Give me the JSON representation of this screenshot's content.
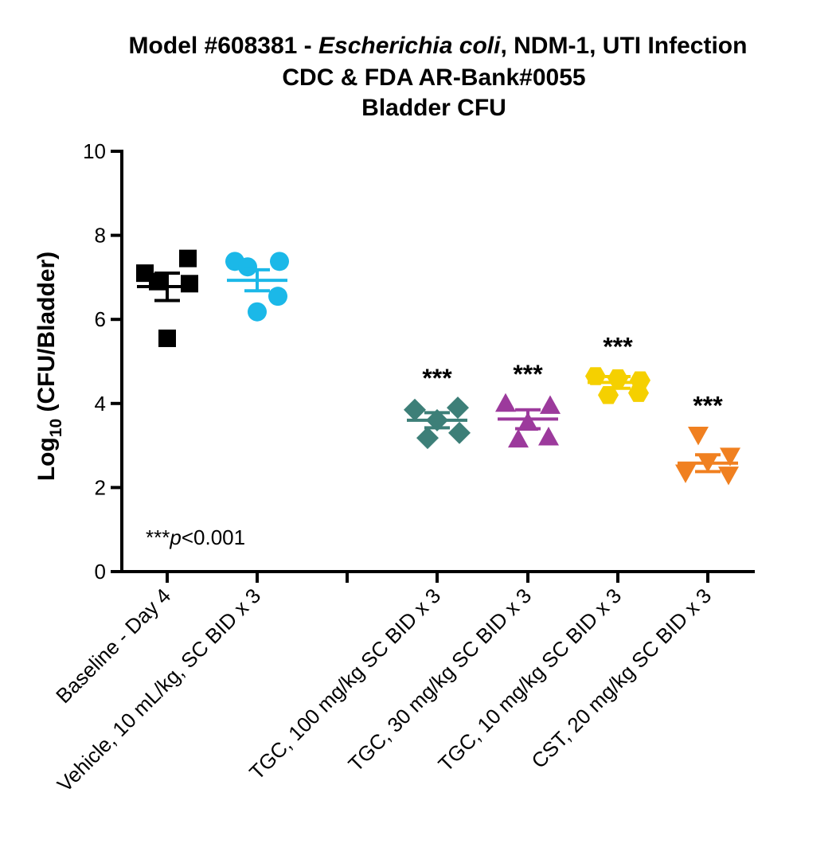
{
  "chart_data": {
    "type": "scatter",
    "title": {
      "line1_prefix": "Model #608381 - ",
      "line1_italic": "Escherichia coli",
      "line1_suffix": ", NDM-1, UTI Infection",
      "line2": "CDC & FDA AR-Bank#0055",
      "line3": "Bladder CFU"
    },
    "ylabel": {
      "prefix": "Log",
      "subscript": "10",
      "suffix": " (CFU/Bladder)"
    },
    "ylim": [
      0,
      10
    ],
    "yticks": [
      "0",
      "2",
      "4",
      "6",
      "8",
      "10"
    ],
    "annotation": {
      "stars": "***",
      "p_italic": "p",
      "rest": "<0.001"
    },
    "groups": [
      {
        "label": "Baseline - Day 4",
        "color": "#000000",
        "marker": "square",
        "mean": 6.78,
        "sem_upper": 7.1,
        "sem_lower": 6.45,
        "points": [
          7.1,
          6.9,
          5.55,
          7.45,
          6.85
        ],
        "significance": ""
      },
      {
        "label": "Vehicle, 10 mL/kg, SC BID x 3",
        "color": "#1bb8e8",
        "marker": "circle",
        "mean": 6.93,
        "sem_upper": 7.18,
        "sem_lower": 6.68,
        "points": [
          7.38,
          7.25,
          6.18,
          6.55,
          7.38
        ],
        "significance": ""
      },
      {
        "label": "TGC, 100 mg/kg SC BID x 3",
        "color": "#3d7f78",
        "marker": "diamond",
        "mean": 3.6,
        "sem_upper": 3.78,
        "sem_lower": 3.42,
        "points": [
          3.85,
          3.18,
          3.6,
          3.9,
          3.3
        ],
        "significance": "***"
      },
      {
        "label": "TGC, 30 mg/kg SC BID x 3",
        "color": "#9c3a9c",
        "marker": "triangle-up",
        "mean": 3.63,
        "sem_upper": 3.85,
        "sem_lower": 3.4,
        "points": [
          4.0,
          3.15,
          3.55,
          3.2,
          3.95
        ],
        "significance": "***"
      },
      {
        "label": "TGC, 10 mg/kg SC BID x 3",
        "color": "#f5d000",
        "marker": "hexagon",
        "mean": 4.5,
        "sem_upper": 4.64,
        "sem_lower": 4.36,
        "points": [
          4.65,
          4.2,
          4.6,
          4.25,
          4.55
        ],
        "significance": "***"
      },
      {
        "label": "CST, 20 mg/kg SC BID x 3",
        "color": "#f08020",
        "marker": "triangle-down",
        "mean": 2.58,
        "sem_upper": 2.78,
        "sem_lower": 2.38,
        "points": [
          2.35,
          3.25,
          2.6,
          2.3,
          2.75
        ],
        "significance": "***"
      }
    ]
  }
}
